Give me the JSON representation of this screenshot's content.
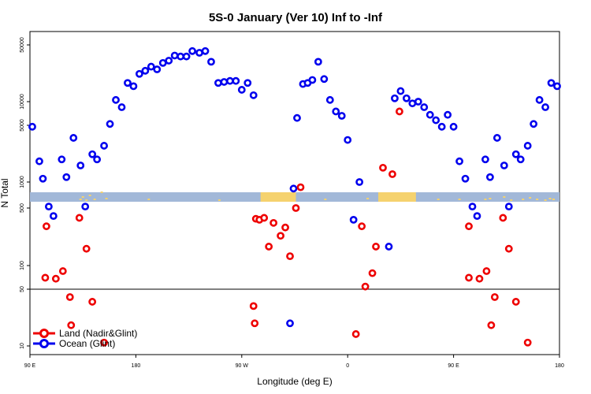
{
  "chart_data": {
    "type": "scatter",
    "title": "5S-0 January (Ver 10)   Inf to -Inf",
    "xlabel": "Longitude (deg E)",
    "ylabel": "N Total",
    "x_tick_labels": [
      "90 E",
      "180",
      "90 W",
      "0",
      "90 E",
      "180"
    ],
    "y_tick_labels": [
      "10",
      "50",
      "100",
      "500",
      "1000",
      "5000",
      "10000",
      "50000"
    ],
    "x_ticks": [
      0,
      90,
      180,
      270,
      360,
      450
    ],
    "x_range": [
      0,
      450
    ],
    "y_ticks": [
      10,
      50,
      100,
      500,
      1000,
      5000,
      10000,
      50000
    ],
    "y_scale": "log-broken",
    "reference_line_y": 50,
    "map_strip": {
      "land_color": "#f5d26e",
      "ocean_color": "#a2b8d8"
    },
    "legend_position": "bottom-left",
    "series": [
      {
        "name": "Land (Nadir&Glint)",
        "color": "#ee0000",
        "points": [
          [
            13,
            70
          ],
          [
            14,
            300
          ],
          [
            22,
            68
          ],
          [
            28,
            85
          ],
          [
            34,
            40
          ],
          [
            35,
            18
          ],
          [
            42,
            380
          ],
          [
            48,
            160
          ],
          [
            53,
            35
          ],
          [
            63,
            11
          ],
          [
            190,
            31
          ],
          [
            191,
            19
          ],
          [
            192,
            370
          ],
          [
            195,
            360
          ],
          [
            199,
            380
          ],
          [
            203,
            170
          ],
          [
            207,
            330
          ],
          [
            213,
            230
          ],
          [
            217,
            290
          ],
          [
            221,
            130
          ],
          [
            226,
            500
          ],
          [
            230,
            870
          ],
          [
            277,
            14
          ],
          [
            282,
            300
          ],
          [
            285,
            54
          ],
          [
            291,
            80
          ],
          [
            294,
            170
          ],
          [
            300,
            1500
          ],
          [
            308,
            1250
          ],
          [
            314,
            7500
          ],
          [
            373,
            70
          ],
          [
            373,
            300
          ],
          [
            382,
            68
          ],
          [
            388,
            85
          ],
          [
            392,
            18
          ],
          [
            395,
            40
          ],
          [
            402,
            380
          ],
          [
            407,
            160
          ],
          [
            413,
            35
          ],
          [
            423,
            11
          ]
        ]
      },
      {
        "name": "Ocean (Glint)",
        "color": "#0000ee",
        "points": [
          [
            2,
            4800
          ],
          [
            8,
            1800
          ],
          [
            11,
            1100
          ],
          [
            16,
            520
          ],
          [
            20,
            400
          ],
          [
            27,
            1900
          ],
          [
            31,
            1150
          ],
          [
            37,
            3500
          ],
          [
            43,
            1600
          ],
          [
            47,
            520
          ],
          [
            53,
            2200
          ],
          [
            57,
            1900
          ],
          [
            63,
            2800
          ],
          [
            68,
            5200
          ],
          [
            73,
            10500
          ],
          [
            78,
            8500
          ],
          [
            83,
            17000
          ],
          [
            88,
            15500
          ],
          [
            93,
            22000
          ],
          [
            98,
            24000
          ],
          [
            103,
            27000
          ],
          [
            108,
            25000
          ],
          [
            113,
            30000
          ],
          [
            118,
            32000
          ],
          [
            123,
            37000
          ],
          [
            128,
            36000
          ],
          [
            133,
            36000
          ],
          [
            138,
            42000
          ],
          [
            144,
            40000
          ],
          [
            149,
            42000
          ],
          [
            154,
            31000
          ],
          [
            160,
            17000
          ],
          [
            165,
            17500
          ],
          [
            170,
            18000
          ],
          [
            175,
            18000
          ],
          [
            180,
            14000
          ],
          [
            185,
            17000
          ],
          [
            190,
            12000
          ],
          [
            221,
            19
          ],
          [
            224,
            840
          ],
          [
            227,
            6200
          ],
          [
            232,
            16500
          ],
          [
            236,
            17000
          ],
          [
            240,
            18500
          ],
          [
            245,
            31000
          ],
          [
            250,
            19000
          ],
          [
            255,
            10500
          ],
          [
            260,
            7500
          ],
          [
            265,
            6600
          ],
          [
            270,
            3300
          ],
          [
            275,
            360
          ],
          [
            280,
            1000
          ],
          [
            305,
            170
          ],
          [
            310,
            11000
          ],
          [
            315,
            13500
          ],
          [
            320,
            11000
          ],
          [
            325,
            9500
          ],
          [
            330,
            10000
          ],
          [
            335,
            8500
          ],
          [
            340,
            6800
          ],
          [
            345,
            5800
          ],
          [
            350,
            4800
          ],
          [
            355,
            6800
          ],
          [
            360,
            4800
          ],
          [
            365,
            1800
          ],
          [
            370,
            1100
          ],
          [
            376,
            520
          ],
          [
            380,
            400
          ],
          [
            387,
            1900
          ],
          [
            391,
            1150
          ],
          [
            397,
            3500
          ],
          [
            403,
            1600
          ],
          [
            407,
            520
          ],
          [
            413,
            2200
          ],
          [
            417,
            1900
          ],
          [
            423,
            2800
          ],
          [
            428,
            5200
          ],
          [
            433,
            10500
          ],
          [
            438,
            8500
          ],
          [
            443,
            17000
          ],
          [
            448,
            15500
          ]
        ]
      }
    ]
  },
  "legend": {
    "land_label": "Land (Nadir&Glint)",
    "ocean_label": "Ocean (Glint)",
    "land_color": "#ee0000",
    "ocean_color": "#0000ee"
  }
}
